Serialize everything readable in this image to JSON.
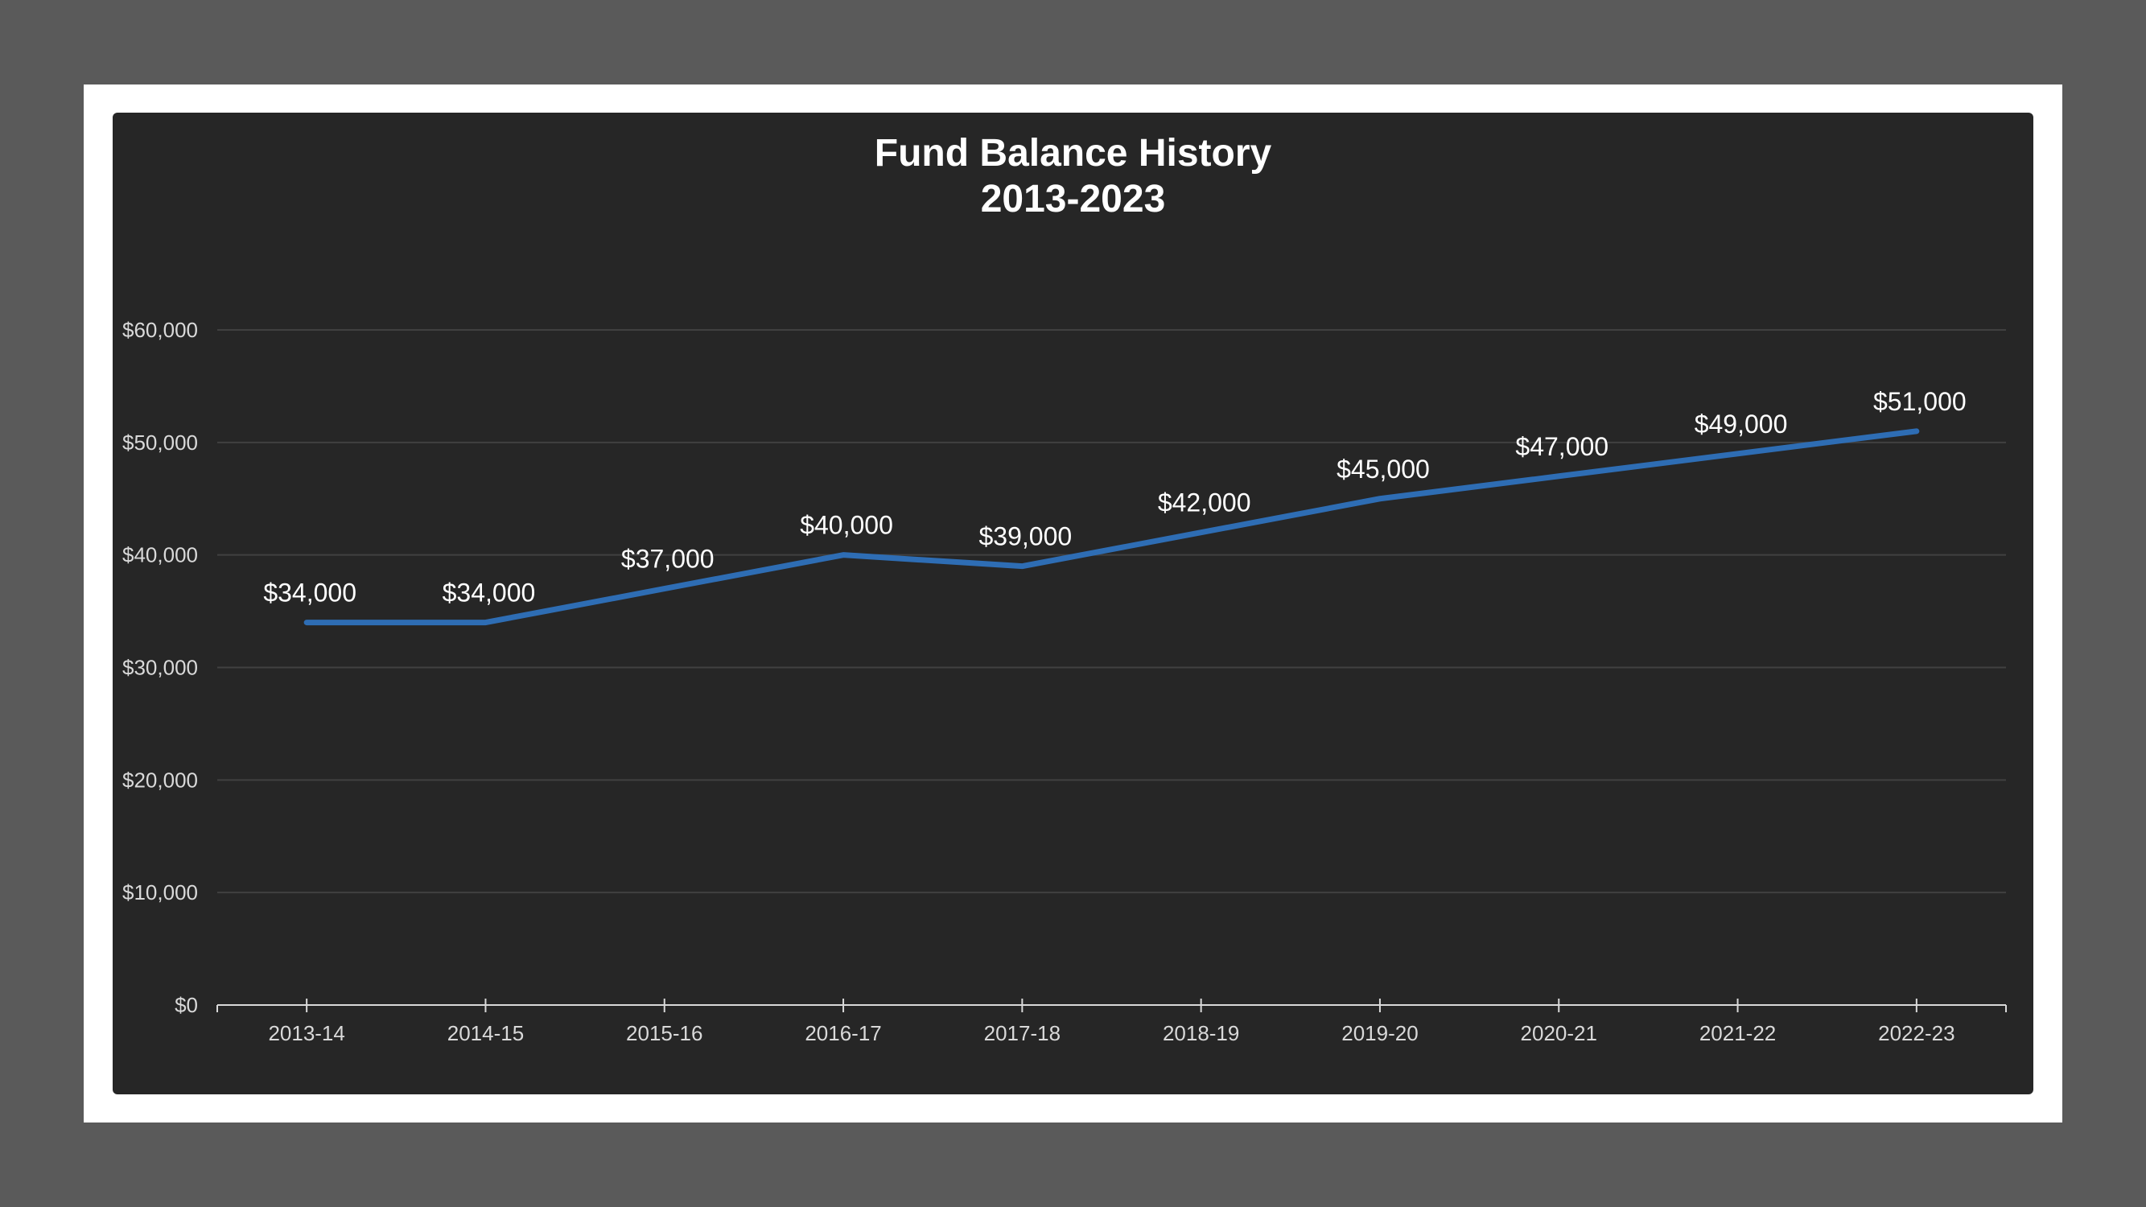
{
  "chart_data": {
    "type": "line",
    "title": "Fund Balance History",
    "subtitle": "2013-2023",
    "categories": [
      "2013-14",
      "2014-15",
      "2015-16",
      "2016-17",
      "2017-18",
      "2018-19",
      "2019-20",
      "2020-21",
      "2021-22",
      "2022-23"
    ],
    "series": [
      {
        "values": [
          34000,
          34000,
          37000,
          40000,
          39000,
          42000,
          45000,
          47000,
          49000,
          51000
        ],
        "color": "#2e6db4"
      }
    ],
    "data_labels": [
      "$34,000",
      "$34,000",
      "$37,000",
      "$40,000",
      "$39,000",
      "$42,000",
      "$45,000",
      "$47,000",
      "$49,000",
      "$51,000"
    ],
    "ylim": [
      0,
      60000
    ],
    "y_ticks": [
      0,
      10000,
      20000,
      30000,
      40000,
      50000,
      60000
    ],
    "y_tick_labels": [
      "$0",
      "$10,000",
      "$20,000",
      "$30,000",
      "$40,000",
      "$50,000",
      "$60,000"
    ],
    "xlabel": "",
    "ylabel": "",
    "grid": true,
    "legend": "none",
    "colors": {
      "background": "#262626",
      "gridline": "#404040",
      "axis": "#d9d9d9",
      "line": "#2e6db4"
    }
  }
}
